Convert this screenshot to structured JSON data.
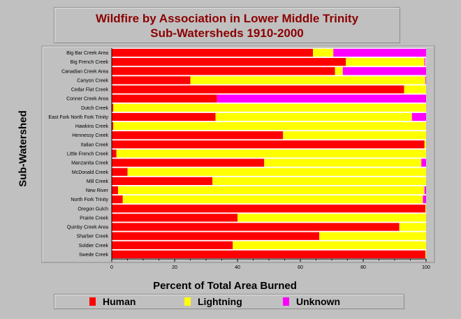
{
  "chart_data": {
    "type": "bar",
    "orientation": "horizontal",
    "stacked": true,
    "title": "Wildfire by Association in Lower Middle Trinity",
    "subtitle": "Sub-Watersheds 1910-2000",
    "xlabel": "Percent of Total Area Burned",
    "ylabel": "Sub-Watershed",
    "xlim": [
      0,
      100
    ],
    "x_ticks": [
      "0",
      "20",
      "40",
      "60",
      "80",
      "100"
    ],
    "grid": false,
    "legend_position": "bottom",
    "categories": [
      "Big Bar Creek Area",
      "Big French Creek",
      "Canadian Creek Area",
      "Canyon Creek",
      "Cedar Flat Creek",
      "Conner Creek Area",
      "Dutch Creek",
      "East Fork North Fork Trinity",
      "Hawkins Creek",
      "Hennessy Creek",
      "Italian Creek",
      "Little French Creek",
      "Manzanita Creek",
      "McDonald Creek",
      "Mill Creek",
      "New River",
      "North Fork Trinity",
      "Oregon Gulch",
      "Prairie Creek",
      "Quinby Creek Area",
      "Sharber Creek",
      "Soldier Creek",
      "Swede Creek"
    ],
    "series": [
      {
        "name": "Human",
        "color": "#ff0000",
        "values": [
          64,
          74.5,
          71,
          25,
          93,
          33.5,
          0.5,
          33,
          0.5,
          54.5,
          99.5,
          1.5,
          48.5,
          5,
          32,
          2,
          3.5,
          99.8,
          40,
          91.5,
          66,
          38.5,
          99.8
        ]
      },
      {
        "name": "Lightning",
        "color": "#ffff00",
        "values": [
          6.5,
          25,
          2.5,
          74.8,
          7,
          0,
          99.5,
          62.5,
          99.5,
          45.5,
          0.5,
          98.5,
          50,
          95,
          68,
          97.5,
          95.5,
          0.2,
          60,
          8.5,
          34,
          61.5,
          0.2
        ]
      },
      {
        "name": "Unknown",
        "color": "#ff00ff",
        "values": [
          29.5,
          0.3,
          26.5,
          0.2,
          0,
          66.5,
          0,
          4.5,
          0,
          0,
          0,
          0,
          1.5,
          0,
          0,
          0.5,
          1,
          0,
          0,
          0,
          0,
          0,
          0
        ]
      }
    ]
  }
}
